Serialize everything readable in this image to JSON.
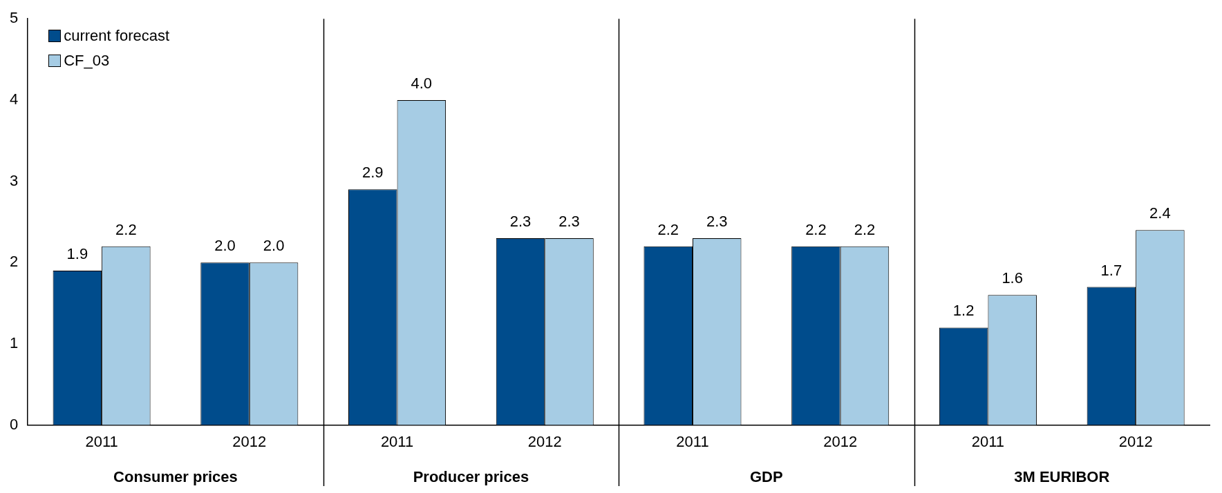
{
  "chart_data": {
    "type": "bar",
    "categories": [
      "2011",
      "2012",
      "2011",
      "2012",
      "2011",
      "2012",
      "2011",
      "2012"
    ],
    "series": [
      {
        "name": "current forecast",
        "color": "#004c8c",
        "values": [
          1.9,
          2.0,
          2.9,
          2.3,
          2.2,
          2.2,
          1.2,
          1.7
        ],
        "value_labels": [
          "1.9",
          "2.0",
          "2.9",
          "2.3",
          "2.2",
          "2.2",
          "1.2",
          "1.7"
        ]
      },
      {
        "name": "CF_03",
        "color": "#a6cce4",
        "values": [
          2.2,
          2.0,
          4.0,
          2.3,
          2.3,
          2.2,
          1.6,
          2.4
        ],
        "value_labels": [
          "2.2",
          "2.0",
          "4.0",
          "2.3",
          "2.3",
          "2.2",
          "1.6",
          "2.4"
        ]
      }
    ],
    "ylim": [
      0,
      5
    ],
    "yticks": [
      0,
      1,
      2,
      3,
      4,
      5
    ],
    "grid": false,
    "legend": "top left",
    "annotations": [
      "Consumer prices",
      "Producer prices",
      "GDP",
      "3M EURIBOR"
    ]
  }
}
